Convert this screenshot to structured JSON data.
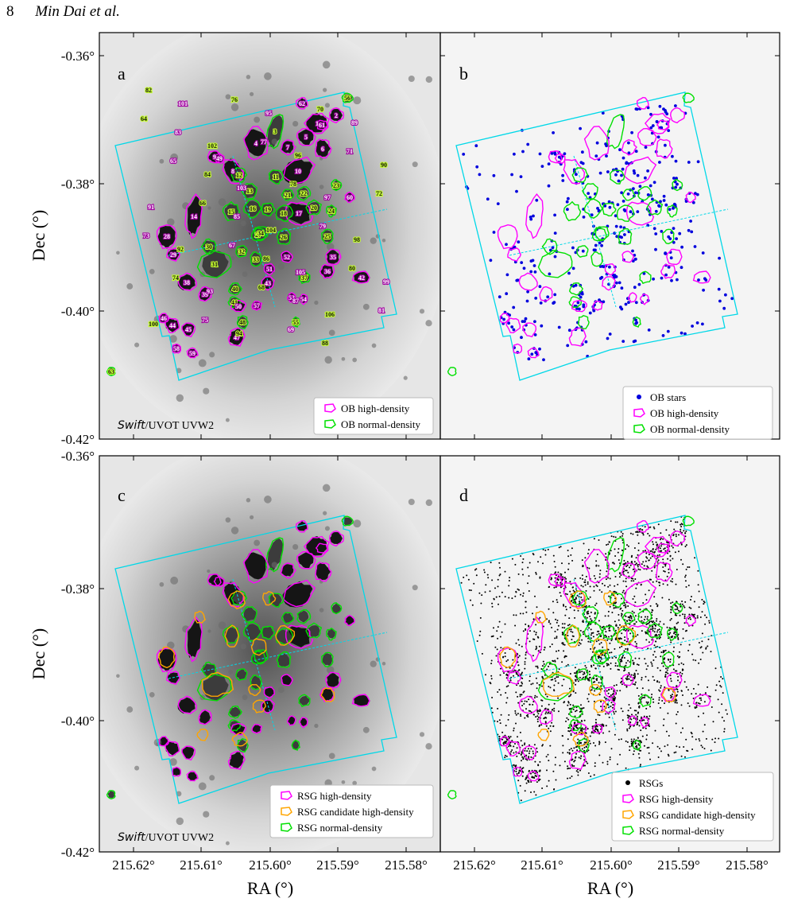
{
  "header": {
    "page_number": "8",
    "authors": "Min Dai et al."
  },
  "figure": {
    "panels": [
      {
        "letter": "a",
        "image_label_prefix": "Swift",
        "image_label_suffix": "/UVOT UVW2",
        "legend": [
          "OB high-density",
          "OB normal-density"
        ]
      },
      {
        "letter": "b",
        "image_label_prefix": "",
        "image_label_suffix": "",
        "legend": [
          "OB stars",
          "OB high-density",
          "OB normal-density"
        ]
      },
      {
        "letter": "c",
        "image_label_prefix": "Swift",
        "image_label_suffix": "/UVOT UVW2",
        "legend": [
          "RSG high-density",
          "RSG candidate high-density",
          "RSG normal-density"
        ]
      },
      {
        "letter": "d",
        "image_label_prefix": "",
        "image_label_suffix": "",
        "legend": [
          "RSGs",
          "RSG high-density",
          "RSG candidate high-density",
          "RSG normal-density"
        ]
      }
    ],
    "axes": {
      "ylabel": "Dec (°)",
      "xlabel": "RA (°)",
      "y_ticks": [
        "-0.36°",
        "-0.38°",
        "-0.40°",
        "-0.42°"
      ],
      "x_ticks": [
        "215.62°",
        "215.61°",
        "215.60°",
        "215.59°",
        "215.58°"
      ]
    },
    "colors": {
      "high": "#ff00ff",
      "normal": "#00e000",
      "candidate": "#ffa500",
      "footprint": "#00d8e8",
      "ob_star": "#0000dd",
      "rsg": "#000000"
    },
    "region_labels": [
      "1",
      "2",
      "3",
      "4",
      "5",
      "6",
      "7",
      "8",
      "9",
      "10",
      "11",
      "12",
      "13",
      "14",
      "15",
      "16",
      "17",
      "18",
      "19",
      "20",
      "21",
      "22",
      "23",
      "24",
      "25",
      "26",
      "27",
      "28",
      "29",
      "30",
      "31",
      "32",
      "33",
      "34",
      "35",
      "36",
      "37",
      "38",
      "39",
      "40",
      "41",
      "42",
      "43",
      "44",
      "45",
      "46",
      "47",
      "48",
      "49",
      "50",
      "51",
      "52",
      "53",
      "54",
      "55",
      "56",
      "57",
      "58",
      "59",
      "60",
      "61",
      "62",
      "63",
      "64",
      "65",
      "66",
      "67",
      "68",
      "69",
      "70",
      "71",
      "72",
      "73",
      "74",
      "75",
      "76",
      "77",
      "78",
      "79",
      "80",
      "81",
      "82",
      "83",
      "84",
      "85",
      "86",
      "87",
      "88",
      "89",
      "90",
      "91",
      "92",
      "93",
      "94",
      "95",
      "96",
      "97",
      "98",
      "99",
      "100",
      "101",
      "102",
      "103",
      "104",
      "105",
      "106"
    ]
  }
}
